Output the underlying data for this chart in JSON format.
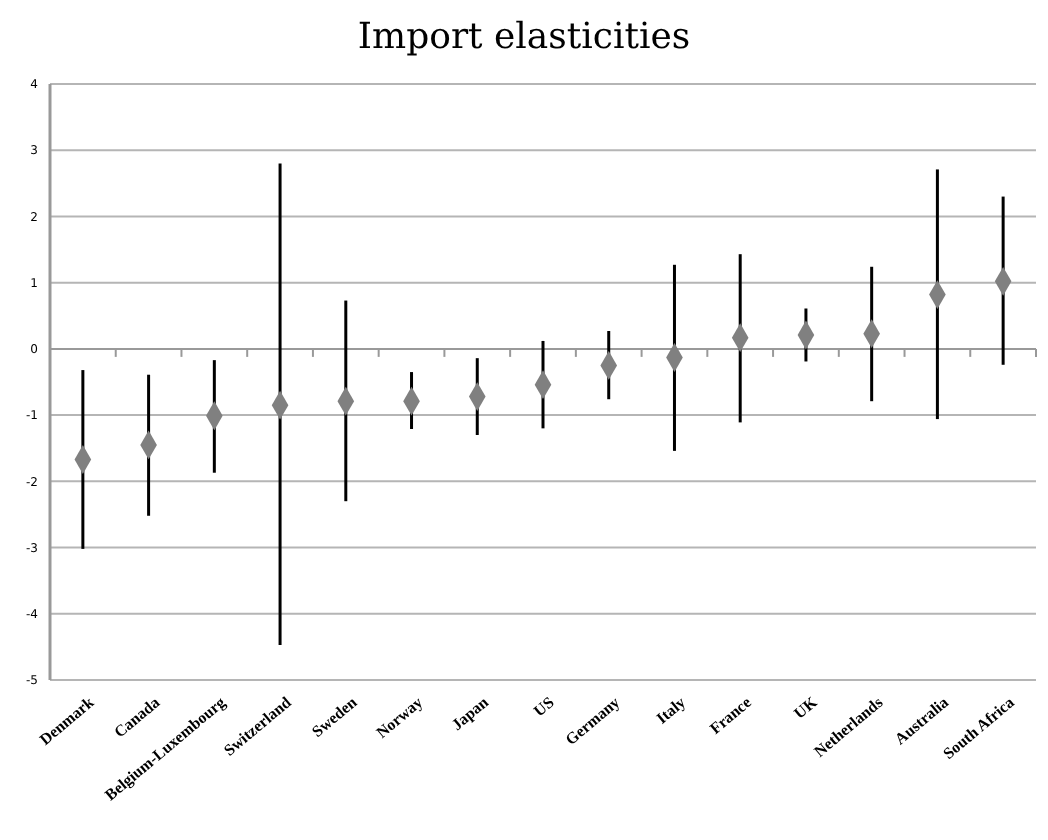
{
  "chart_data": {
    "type": "scatter",
    "title": "Import elasticities",
    "categories": [
      "Denmark",
      "Canada",
      "Belgium-Luxembourg",
      "Switzerland",
      "Sweden",
      "Norway",
      "Japan",
      "US",
      "Germany",
      "Italy",
      "France",
      "UK",
      "Netherlands",
      "Australia",
      "South Africa"
    ],
    "series": [
      {
        "color": "#808080",
        "values": [
          -1.67,
          -1.45,
          -1.01,
          -0.85,
          -0.79,
          -0.79,
          -0.72,
          -0.54,
          -0.25,
          -0.13,
          0.17,
          0.21,
          0.23,
          0.82,
          1.02
        ],
        "errors": [
          [
            -3.02,
            -0.32
          ],
          [
            -2.52,
            -0.39
          ],
          [
            -1.87,
            -0.17
          ],
          [
            -4.47,
            2.8
          ],
          [
            -2.3,
            0.73
          ],
          [
            -1.21,
            -0.35
          ],
          [
            -1.3,
            -0.14
          ],
          [
            -1.2,
            0.12
          ],
          [
            -0.76,
            0.27
          ],
          [
            -1.54,
            1.27
          ],
          [
            -1.11,
            1.43
          ],
          [
            -0.19,
            0.61
          ],
          [
            -0.79,
            1.24
          ],
          [
            -1.06,
            2.71
          ],
          [
            -0.24,
            2.3
          ]
        ]
      }
    ],
    "ylim": [
      -5,
      4
    ],
    "yticks": [
      -5,
      -4,
      -3,
      -2,
      -1,
      0,
      1,
      2,
      3,
      4
    ],
    "grid": "y",
    "marker": "diamond"
  }
}
